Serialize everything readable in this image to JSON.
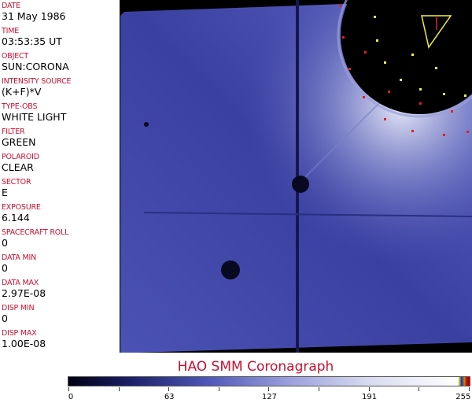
{
  "fields": [
    {
      "label": "DATE",
      "value": "31 May 1986"
    },
    {
      "label": "TIME",
      "value": "03:53:35 UT"
    },
    {
      "label": "OBJECT",
      "value": "SUN:CORONA"
    },
    {
      "label": "INTENSITY SOURCE",
      "value": "(K+F)*V"
    },
    {
      "label": "TYPE-OBS",
      "value": "WHITE LIGHT"
    },
    {
      "label": "FILTER",
      "value": "GREEN"
    },
    {
      "label": "POLAROID",
      "value": "CLEAR"
    },
    {
      "label": "SECTOR",
      "value": "E"
    },
    {
      "label": "EXPOSURE",
      "value": "6.144"
    },
    {
      "label": "SPACECRAFT ROLL",
      "value": "0"
    },
    {
      "label": "DATA MIN",
      "value": "0"
    },
    {
      "label": "DATA MAX",
      "value": "2.97E-08"
    },
    {
      "label": "DISP MIN",
      "value": "0"
    },
    {
      "label": "DISP MAX",
      "value": "1.00E-08"
    }
  ],
  "title": "HAO   SMM  Coronagraph",
  "colorbar": {
    "ticks": [
      "0",
      "63",
      "127",
      "191",
      "255"
    ],
    "min": 0,
    "max": 255
  }
}
